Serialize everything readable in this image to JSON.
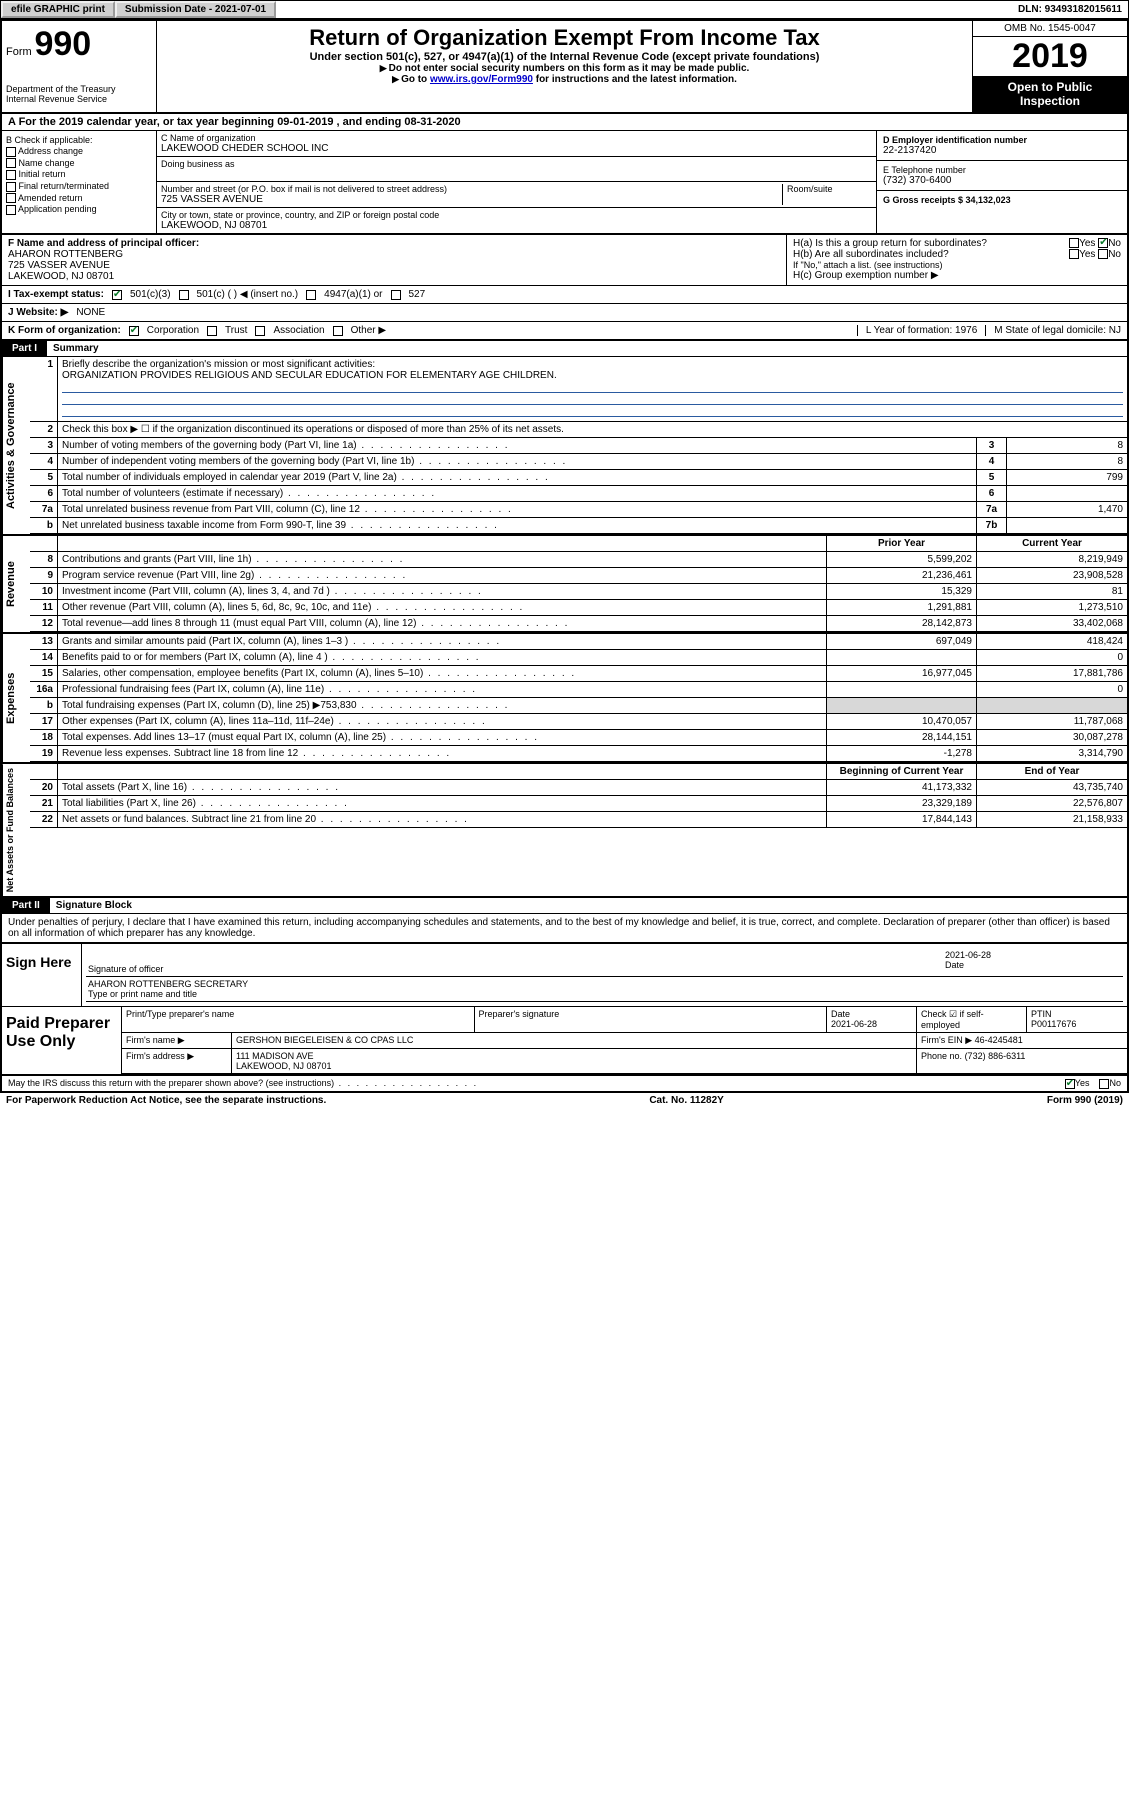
{
  "top_bar": {
    "efile_label": "efile GRAPHIC print",
    "submission_label": "Submission Date - 2021-07-01",
    "dln_label": "DLN: 93493182015611"
  },
  "header": {
    "form_word": "Form",
    "form_num": "990",
    "dept1": "Department of the Treasury",
    "dept2": "Internal Revenue Service",
    "title": "Return of Organization Exempt From Income Tax",
    "subtitle": "Under section 501(c), 527, or 4947(a)(1) of the Internal Revenue Code (except private foundations)",
    "note1": "Do not enter social security numbers on this form as it may be made public.",
    "note2_prefix": "Go to ",
    "note2_link": "www.irs.gov/Form990",
    "note2_suffix": " for instructions and the latest information.",
    "omb": "OMB No. 1545-0047",
    "year": "2019",
    "open_public": "Open to Public Inspection"
  },
  "period": {
    "line": "A For the 2019 calendar year, or tax year beginning 09-01-2019   , and ending 08-31-2020"
  },
  "boxB": {
    "label": "B Check if applicable:",
    "opts": [
      "Address change",
      "Name change",
      "Initial return",
      "Final return/terminated",
      "Amended return",
      "Application pending"
    ]
  },
  "boxC": {
    "name_label": "C Name of organization",
    "name": "LAKEWOOD CHEDER SCHOOL INC",
    "dba_label": "Doing business as",
    "street_label": "Number and street (or P.O. box if mail is not delivered to street address)",
    "room_label": "Room/suite",
    "street": "725 VASSER AVENUE",
    "city_label": "City or town, state or province, country, and ZIP or foreign postal code",
    "city": "LAKEWOOD, NJ  08701"
  },
  "boxD": {
    "ein_label": "D Employer identification number",
    "ein": "22-2137420",
    "phone_label": "E Telephone number",
    "phone": "(732) 370-6400",
    "gross_label": "G Gross receipts $ 34,132,023"
  },
  "boxF": {
    "label": "F Name and address of principal officer:",
    "name": "AHARON ROTTENBERG",
    "street": "725 VASSER AVENUE",
    "city": "LAKEWOOD, NJ  08701"
  },
  "boxH": {
    "a_label": "H(a)  Is this a group return for subordinates?",
    "b_label": "H(b)  Are all subordinates included?",
    "b_note": "If \"No,\" attach a list. (see instructions)",
    "c_label": "H(c)  Group exemption number ▶",
    "yes": "Yes",
    "no": "No"
  },
  "status": {
    "label": "I  Tax-exempt status:",
    "o1": "501(c)(3)",
    "o2": "501(c) (  ) ◀ (insert no.)",
    "o3": "4947(a)(1) or",
    "o4": "527"
  },
  "website": {
    "label": "J  Website: ▶",
    "value": "NONE"
  },
  "korg": {
    "label": "K Form of organization:",
    "o1": "Corporation",
    "o2": "Trust",
    "o3": "Association",
    "o4": "Other ▶",
    "l_label": "L Year of formation: 1976",
    "m_label": "M State of legal domicile: NJ"
  },
  "partI": {
    "hdr": "Part I",
    "title": "Summary"
  },
  "summary": {
    "sec1_label": "Activities & Governance",
    "line1_label": "Briefly describe the organization's mission or most significant activities:",
    "line1_text": "ORGANIZATION PROVIDES RELIGIOUS AND SECULAR EDUCATION FOR ELEMENTARY AGE CHILDREN.",
    "line2": "Check this box ▶ ☐  if the organization discontinued its operations or disposed of more than 25% of its net assets.",
    "rows_gov": [
      {
        "n": "3",
        "t": "Number of voting members of the governing body (Part VI, line 1a)",
        "b": "3",
        "v": "8"
      },
      {
        "n": "4",
        "t": "Number of independent voting members of the governing body (Part VI, line 1b)",
        "b": "4",
        "v": "8"
      },
      {
        "n": "5",
        "t": "Total number of individuals employed in calendar year 2019 (Part V, line 2a)",
        "b": "5",
        "v": "799"
      },
      {
        "n": "6",
        "t": "Total number of volunteers (estimate if necessary)",
        "b": "6",
        "v": ""
      },
      {
        "n": "7a",
        "t": "Total unrelated business revenue from Part VIII, column (C), line 12",
        "b": "7a",
        "v": "1,470"
      },
      {
        "n": "b",
        "t": "Net unrelated business taxable income from Form 990-T, line 39",
        "b": "7b",
        "v": ""
      }
    ],
    "sec2_label": "Revenue",
    "col_prior": "Prior Year",
    "col_current": "Current Year",
    "rows_rev": [
      {
        "n": "8",
        "t": "Contributions and grants (Part VIII, line 1h)",
        "p": "5,599,202",
        "c": "8,219,949"
      },
      {
        "n": "9",
        "t": "Program service revenue (Part VIII, line 2g)",
        "p": "21,236,461",
        "c": "23,908,528"
      },
      {
        "n": "10",
        "t": "Investment income (Part VIII, column (A), lines 3, 4, and 7d )",
        "p": "15,329",
        "c": "81"
      },
      {
        "n": "11",
        "t": "Other revenue (Part VIII, column (A), lines 5, 6d, 8c, 9c, 10c, and 11e)",
        "p": "1,291,881",
        "c": "1,273,510"
      },
      {
        "n": "12",
        "t": "Total revenue—add lines 8 through 11 (must equal Part VIII, column (A), line 12)",
        "p": "28,142,873",
        "c": "33,402,068"
      }
    ],
    "sec3_label": "Expenses",
    "rows_exp": [
      {
        "n": "13",
        "t": "Grants and similar amounts paid (Part IX, column (A), lines 1–3 )",
        "p": "697,049",
        "c": "418,424"
      },
      {
        "n": "14",
        "t": "Benefits paid to or for members (Part IX, column (A), line 4 )",
        "p": "",
        "c": "0"
      },
      {
        "n": "15",
        "t": "Salaries, other compensation, employee benefits (Part IX, column (A), lines 5–10)",
        "p": "16,977,045",
        "c": "17,881,786"
      },
      {
        "n": "16a",
        "t": "Professional fundraising fees (Part IX, column (A), line 11e)",
        "p": "",
        "c": "0"
      },
      {
        "n": "b",
        "t": "Total fundraising expenses (Part IX, column (D), line 25) ▶753,830",
        "p": "",
        "c": "",
        "gray": true
      },
      {
        "n": "17",
        "t": "Other expenses (Part IX, column (A), lines 11a–11d, 11f–24e)",
        "p": "10,470,057",
        "c": "11,787,068"
      },
      {
        "n": "18",
        "t": "Total expenses. Add lines 13–17 (must equal Part IX, column (A), line 25)",
        "p": "28,144,151",
        "c": "30,087,278"
      },
      {
        "n": "19",
        "t": "Revenue less expenses. Subtract line 18 from line 12",
        "p": "-1,278",
        "c": "3,314,790"
      }
    ],
    "sec4_label": "Net Assets or Fund Balances",
    "col_begin": "Beginning of Current Year",
    "col_end": "End of Year",
    "rows_net": [
      {
        "n": "20",
        "t": "Total assets (Part X, line 16)",
        "p": "41,173,332",
        "c": "43,735,740"
      },
      {
        "n": "21",
        "t": "Total liabilities (Part X, line 26)",
        "p": "23,329,189",
        "c": "22,576,807"
      },
      {
        "n": "22",
        "t": "Net assets or fund balances. Subtract line 21 from line 20",
        "p": "17,844,143",
        "c": "21,158,933"
      }
    ]
  },
  "partII": {
    "hdr": "Part II",
    "title": "Signature Block",
    "perjury": "Under penalties of perjury, I declare that I have examined this return, including accompanying schedules and statements, and to the best of my knowledge and belief, it is true, correct, and complete. Declaration of preparer (other than officer) is based on all information of which preparer has any knowledge."
  },
  "sign": {
    "label": "Sign Here",
    "sig_of_officer": "Signature of officer",
    "date": "2021-06-28",
    "date_label": "Date",
    "name_title": "AHARON ROTTENBERG  SECRETARY",
    "type_label": "Type or print name and title"
  },
  "prep": {
    "label": "Paid Preparer Use Only",
    "h_print": "Print/Type preparer's name",
    "h_sig": "Preparer's signature",
    "h_date": "Date",
    "date": "2021-06-28",
    "h_check": "Check ☑ if self-employed",
    "h_ptin": "PTIN",
    "ptin": "P00117676",
    "firm_name_label": "Firm's name    ▶",
    "firm_name": "GERSHON BIEGELEISEN & CO CPAS LLC",
    "firm_ein_label": "Firm's EIN ▶",
    "firm_ein": "46-4245481",
    "firm_addr_label": "Firm's address ▶",
    "firm_addr1": "111 MADISON AVE",
    "firm_addr2": "LAKEWOOD, NJ  08701",
    "phone_label": "Phone no.",
    "phone": "(732) 886-6311"
  },
  "discuss": {
    "q": "May the IRS discuss this return with the preparer shown above? (see instructions)",
    "yes": "Yes",
    "no": "No"
  },
  "footer": {
    "paperwork": "For Paperwork Reduction Act Notice, see the separate instructions.",
    "cat": "Cat. No. 11282Y",
    "form": "Form 990 (2019)"
  }
}
